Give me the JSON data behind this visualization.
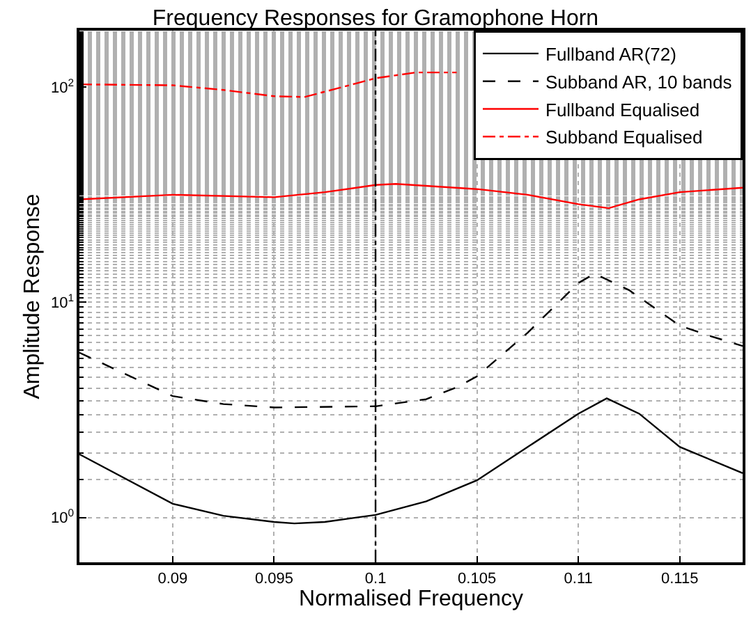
{
  "chart_data": {
    "type": "line",
    "title": "Frequency Responses for Gramophone Horn",
    "xlabel": "Normalised Frequency",
    "ylabel": "Amplitude Response",
    "log": "y",
    "grid": true,
    "legend": "top right",
    "marker": "none",
    "xlim": [
      0.0854,
      0.1181
    ],
    "xticks": [
      0.09,
      0.095,
      0.1,
      0.105,
      0.11,
      0.115
    ],
    "ylim": [
      0.62,
      183
    ],
    "yticks": [
      {
        "value": 1,
        "label": "10$^{0}$"
      },
      {
        "value": 10,
        "label": "10$^{1}$"
      },
      {
        "value": 100,
        "label": "10$^{2}$"
      }
    ],
    "ref_lines": [
      {
        "axis": "x",
        "value": 0.1,
        "label": null,
        "color": "#000000",
        "line_style": "dashdot"
      }
    ],
    "series": [
      {
        "name": "Fullband AR(72)",
        "color": "#000000",
        "line_style": "solid",
        "x": [
          0.0854,
          0.09,
          0.0925,
          0.095,
          0.096,
          0.0975,
          0.1,
          0.1025,
          0.105,
          0.1075,
          0.11,
          0.1114,
          0.113,
          0.115,
          0.1181
        ],
        "values": [
          1.97,
          1.16,
          1.02,
          0.955,
          0.94,
          0.955,
          1.03,
          1.19,
          1.49,
          2.13,
          3.04,
          3.58,
          3.04,
          2.13,
          1.61
        ]
      },
      {
        "name": "Subband AR, 10 bands",
        "color": "#000000",
        "line_style": "dashed",
        "x": [
          0.0854,
          0.09,
          0.0925,
          0.095,
          0.1,
          0.1025,
          0.104,
          0.105,
          0.1075,
          0.11,
          0.1108,
          0.1125,
          0.115,
          0.1165,
          0.1181
        ],
        "values": [
          5.84,
          3.67,
          3.37,
          3.25,
          3.29,
          3.55,
          4.03,
          4.53,
          7.23,
          12.3,
          13.6,
          11.4,
          7.8,
          6.98,
          6.27
        ]
      },
      {
        "name": "Fullband Equalised",
        "color": "#ff0000",
        "line_style": "solid",
        "x": [
          0.0854,
          0.09,
          0.095,
          0.0975,
          0.1,
          0.101,
          0.105,
          0.1075,
          0.11,
          0.1115,
          0.113,
          0.115,
          0.1181
        ],
        "values": [
          30.1,
          31.6,
          30.8,
          32.5,
          35.1,
          35.5,
          33.6,
          31.6,
          28.6,
          27.4,
          30.1,
          32.5,
          34.1
        ]
      },
      {
        "name": "Subband Equalised",
        "color": "#ff0000",
        "line_style": "dashdot",
        "x": [
          0.0854,
          0.09,
          0.0925,
          0.095,
          0.0965,
          0.098,
          0.1,
          0.102,
          0.104
        ],
        "values": [
          103,
          102,
          97,
          90.7,
          90,
          98,
          110,
          117,
          117
        ]
      }
    ]
  }
}
